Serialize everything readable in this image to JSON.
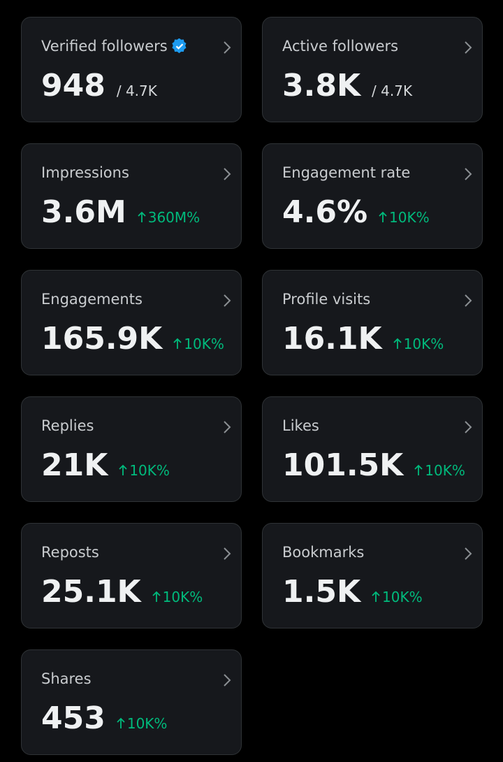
{
  "cards": [
    {
      "label": "Verified followers",
      "verified_badge": true,
      "value": "948",
      "total": "/ 4.7K"
    },
    {
      "label": "Active followers",
      "value": "3.8K",
      "total": "/ 4.7K"
    },
    {
      "label": "Impressions",
      "value": "3.6M",
      "change": "360M%"
    },
    {
      "label": "Engagement rate",
      "value": "4.6%",
      "change": "10K%"
    },
    {
      "label": "Engagements",
      "value": "165.9K",
      "change": "10K%"
    },
    {
      "label": "Profile visits",
      "value": "16.1K",
      "change": "10K%"
    },
    {
      "label": "Replies",
      "value": "21K",
      "change": "10K%"
    },
    {
      "label": "Likes",
      "value": "101.5K",
      "change": "10K%"
    },
    {
      "label": "Reposts",
      "value": "25.1K",
      "change": "10K%"
    },
    {
      "label": "Bookmarks",
      "value": "1.5K",
      "change": "10K%"
    },
    {
      "label": "Shares",
      "value": "453",
      "change": "10K%"
    }
  ]
}
